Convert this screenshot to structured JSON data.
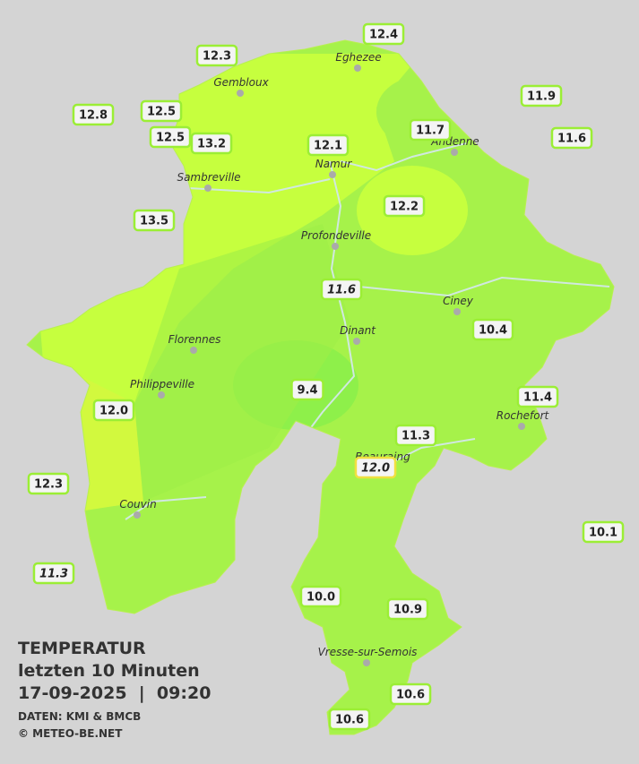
{
  "title": {
    "heading": "TEMPERATUR",
    "period": "letzten 10 Minuten",
    "timestamp": "17-09-2025  |  09:20"
  },
  "credits": [
    "DATEN: KMI & BMCB",
    "© METEO-BE.NET"
  ],
  "cities": [
    {
      "name": "Eghezee"
    },
    {
      "name": "Gembloux"
    },
    {
      "name": "Andenne"
    },
    {
      "name": "Namur"
    },
    {
      "name": "Sambreville"
    },
    {
      "name": "Profondeville"
    },
    {
      "name": "Ciney"
    },
    {
      "name": "Dinant"
    },
    {
      "name": "Florennes"
    },
    {
      "name": "Philippeville"
    },
    {
      "name": "Rochefort"
    },
    {
      "name": "Beauraing"
    },
    {
      "name": "Couvin"
    },
    {
      "name": "Vresse-sur-Semois"
    }
  ],
  "stations": [
    {
      "value": "12.4"
    },
    {
      "value": "12.3"
    },
    {
      "value": "11.9"
    },
    {
      "value": "12.8"
    },
    {
      "value": "12.5"
    },
    {
      "value": "12.5"
    },
    {
      "value": "13.2"
    },
    {
      "value": "12.1"
    },
    {
      "value": "11.7"
    },
    {
      "value": "11.6"
    },
    {
      "value": "12.2"
    },
    {
      "value": "13.5"
    },
    {
      "value": "11.6"
    },
    {
      "value": "10.4"
    },
    {
      "value": "9.4"
    },
    {
      "value": "11.4"
    },
    {
      "value": "12.0"
    },
    {
      "value": "11.3"
    },
    {
      "value": "12.0"
    },
    {
      "value": "12.3"
    },
    {
      "value": "10.1"
    },
    {
      "value": "11.3"
    },
    {
      "value": "10.0"
    },
    {
      "value": "10.9"
    },
    {
      "value": "10.6"
    },
    {
      "value": "10.6"
    }
  ]
}
